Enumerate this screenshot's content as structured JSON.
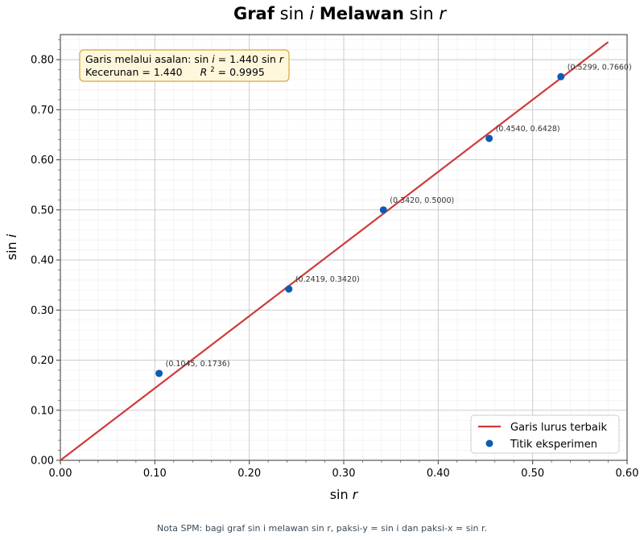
{
  "chart_data": {
    "type": "scatter",
    "title": {
      "bold_1": "Graf",
      "func_1": "sin",
      "var_1": "i",
      "bold_2": "Melawan",
      "func_2": "sin",
      "var_2": "r"
    },
    "xlabel": {
      "func": "sin",
      "var": "r"
    },
    "ylabel": {
      "func": "sin",
      "var": "i"
    },
    "xlim": [
      0,
      0.6
    ],
    "ylim": [
      0,
      0.85
    ],
    "xticks": [
      "0.00",
      "0.10",
      "0.20",
      "0.30",
      "0.40",
      "0.50",
      "0.60"
    ],
    "yticks": [
      "0.00",
      "0.10",
      "0.20",
      "0.30",
      "0.40",
      "0.50",
      "0.60",
      "0.70",
      "0.80"
    ],
    "grid": true,
    "series": [
      {
        "name": "Titik eksperimen",
        "kind": "scatter",
        "color": "#0d5bb5",
        "points": [
          {
            "x": 0.1045,
            "y": 0.1736,
            "label": "(0.1045, 0.1736)"
          },
          {
            "x": 0.2419,
            "y": 0.342,
            "label": "(0.2419, 0.3420)"
          },
          {
            "x": 0.342,
            "y": 0.5,
            "label": "(0.3420, 0.5000)"
          },
          {
            "x": 0.454,
            "y": 0.6428,
            "label": "(0.4540, 0.6428)"
          },
          {
            "x": 0.5299,
            "y": 0.766,
            "label": "(0.5299, 0.7660)"
          }
        ]
      },
      {
        "name": "Garis lurus terbaik",
        "kind": "line",
        "color": "#d03a3a",
        "slope": 1.44,
        "x_range": [
          0,
          0.58
        ]
      }
    ],
    "annotation": {
      "line1_prefix": "Garis melalui asalan: ",
      "line1_func_a": "sin",
      "line1_var_a": "i",
      "line1_mid": " = 1.440",
      "line1_func_b": "sin",
      "line1_var_b": "r",
      "line2_a": "Kecerunan = 1.440",
      "line2_r": "R",
      "line2_sup": "2",
      "line2_b": " = 0.9995"
    },
    "legend": {
      "placement": "lower-right",
      "entries": [
        "Garis lurus terbaik",
        "Titik eksperimen"
      ]
    }
  },
  "note": "Nota SPM: bagi graf sin i melawan sin r, paksi-y = sin i dan paksi-x = sin r."
}
